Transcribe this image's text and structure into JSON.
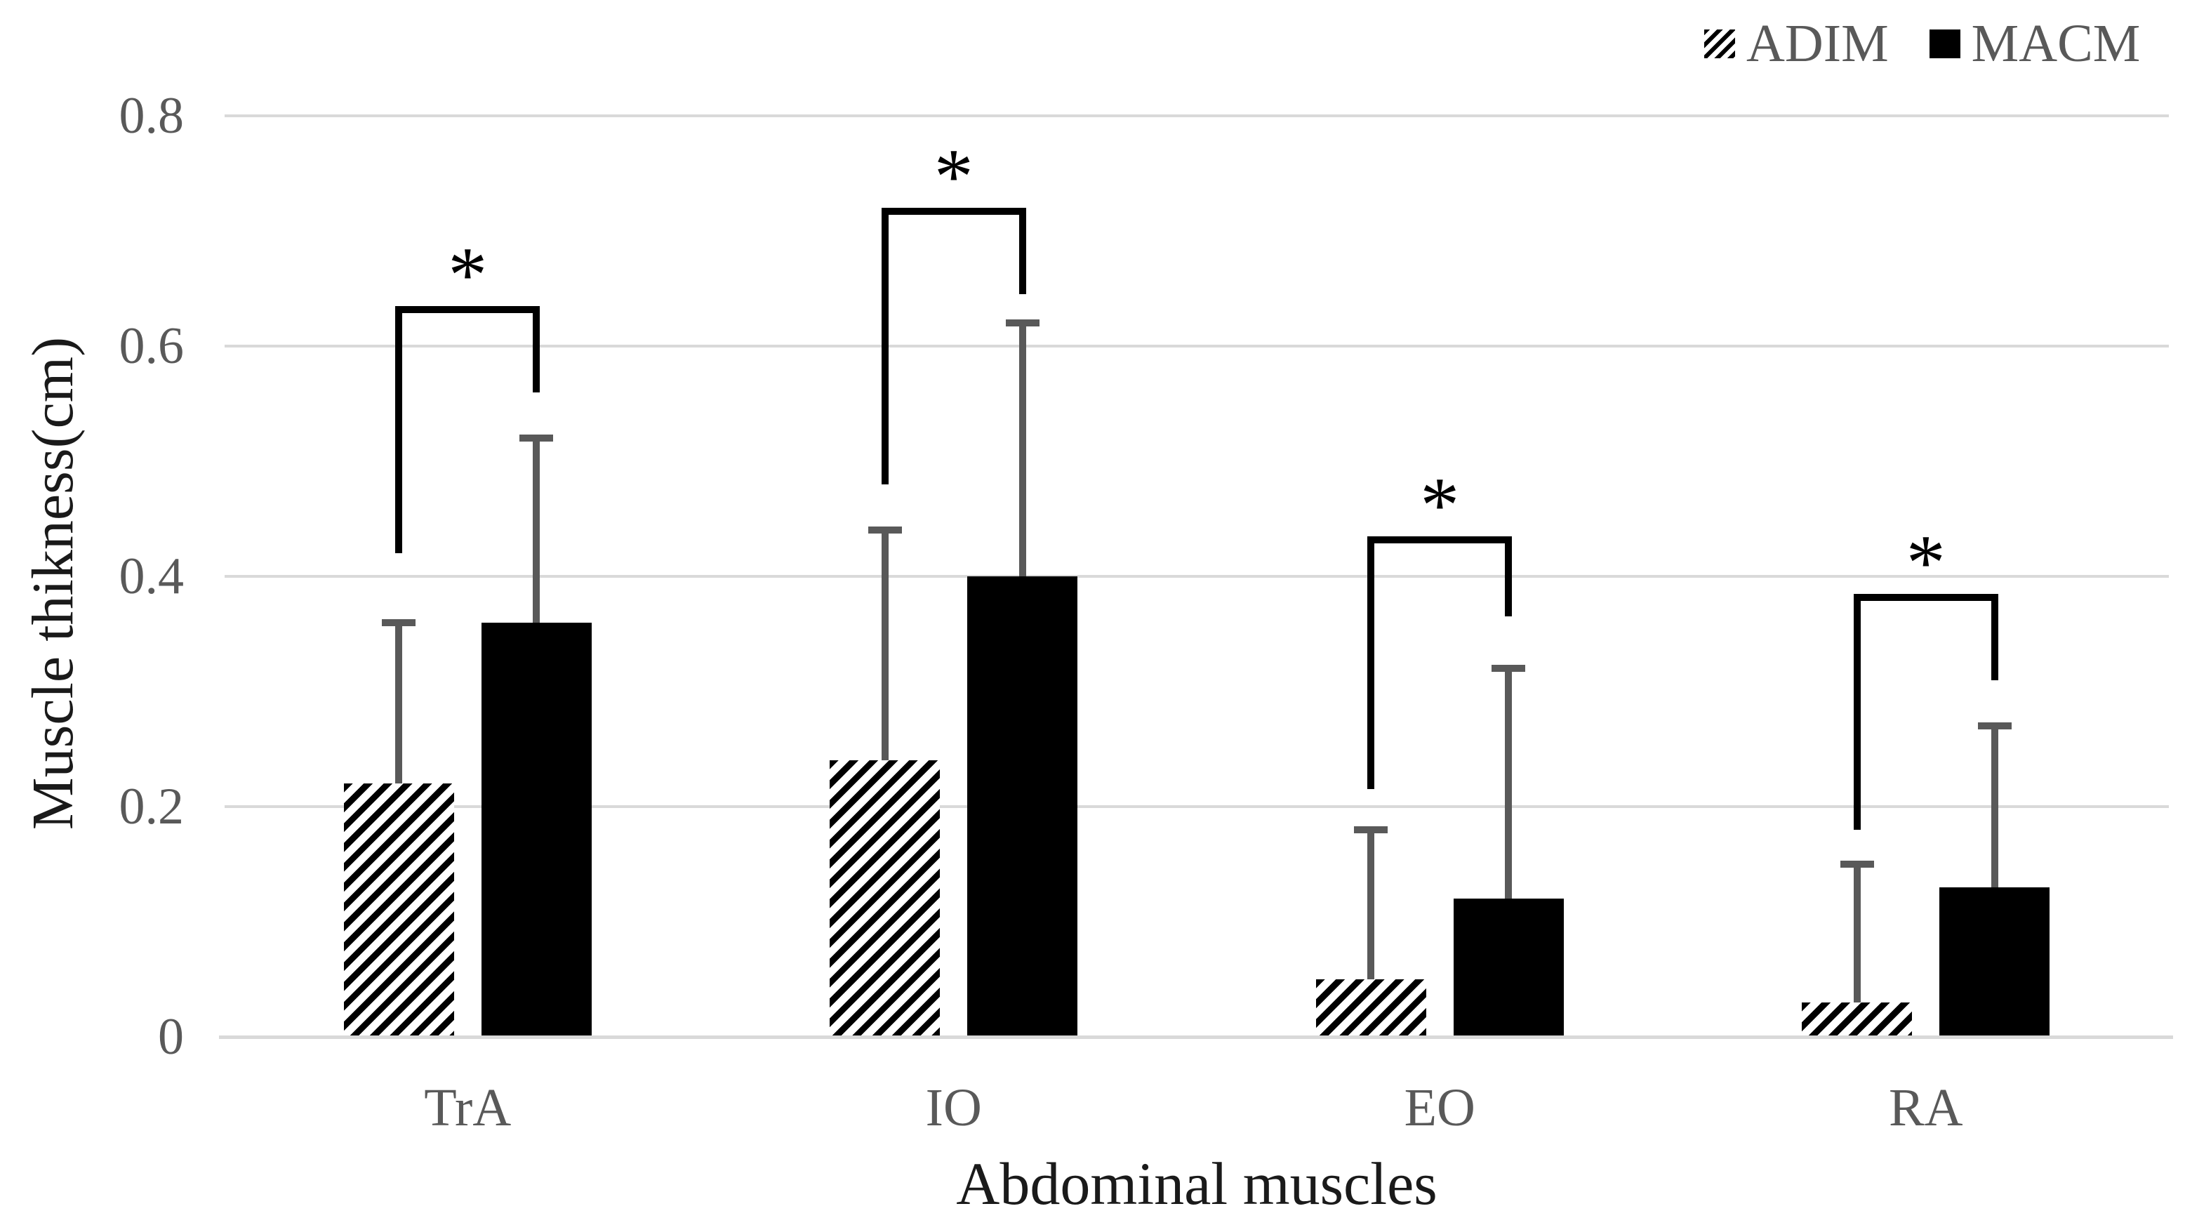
{
  "legend": {
    "items": [
      {
        "label": "ADIM",
        "swatch": "hatched"
      },
      {
        "label": "MACM",
        "swatch": "solid"
      }
    ]
  },
  "chart_data": {
    "type": "bar",
    "title": "",
    "xlabel": "Abdominal muscles",
    "ylabel": "Muscle thikness(cm)",
    "categories": [
      "TrA",
      "IO",
      "EO",
      "RA"
    ],
    "series": [
      {
        "name": "ADIM",
        "fill": "hatched",
        "values": [
          0.22,
          0.24,
          0.05,
          0.03
        ],
        "error_top": [
          0.36,
          0.44,
          0.18,
          0.15
        ]
      },
      {
        "name": "MACM",
        "fill": "solid",
        "values": [
          0.36,
          0.4,
          0.12,
          0.13
        ],
        "error_top": [
          0.52,
          0.62,
          0.32,
          0.27
        ]
      }
    ],
    "ylim": [
      0,
      0.8
    ],
    "yticks": [
      {
        "value": 0.8,
        "label": "0.8"
      },
      {
        "value": 0.6,
        "label": "0.6"
      },
      {
        "value": 0.4,
        "label": "0.4"
      },
      {
        "value": 0.2,
        "label": "0.2"
      },
      {
        "value": 0,
        "label": "0"
      }
    ],
    "grid": true,
    "legend_position": "top-right",
    "significance_brackets": [
      {
        "category": "TrA",
        "label": "*",
        "top": 0.635,
        "left_bottom": 0.42,
        "right_bottom": 0.56
      },
      {
        "category": "IO",
        "label": "*",
        "top": 0.72,
        "left_bottom": 0.48,
        "right_bottom": 0.645
      },
      {
        "category": "EO",
        "label": "*",
        "top": 0.435,
        "left_bottom": 0.215,
        "right_bottom": 0.365
      },
      {
        "category": "RA",
        "label": "*",
        "top": 0.385,
        "left_bottom": 0.18,
        "right_bottom": 0.31
      }
    ],
    "colors": {
      "bar_fill": "#000000",
      "error_bar": "#595959",
      "gridline": "#d9d9d9",
      "tick_text": "#595959",
      "axis_title_text": "#1a1a1a",
      "bracket": "#000000"
    }
  }
}
